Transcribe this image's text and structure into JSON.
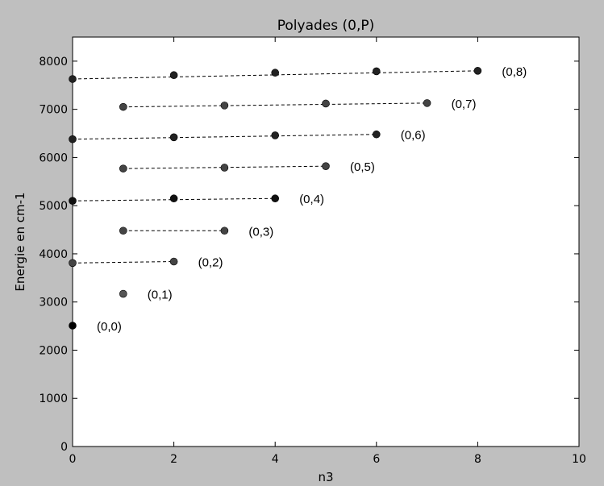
{
  "chart_data": {
    "type": "scatter",
    "title": "Polyades (0,P)",
    "xlabel": "n3",
    "ylabel": "Energie en cm-1",
    "xlim": [
      0,
      10
    ],
    "ylim": [
      0,
      8500
    ],
    "xticks": [
      0,
      2,
      4,
      6,
      8,
      10
    ],
    "yticks": [
      0,
      1000,
      2000,
      3000,
      4000,
      5000,
      6000,
      7000,
      8000
    ],
    "grid": false,
    "series": [
      {
        "label": "(0,0)",
        "color": "#000000",
        "points": [
          [
            0,
            2510
          ]
        ]
      },
      {
        "label": "(0,1)",
        "color": "#555555",
        "points": [
          [
            1,
            3170
          ]
        ]
      },
      {
        "label": "(0,2)",
        "color": "#444444",
        "points": [
          [
            0,
            3810
          ],
          [
            2,
            3840
          ]
        ]
      },
      {
        "label": "(0,3)",
        "color": "#444444",
        "points": [
          [
            1,
            4480
          ],
          [
            3,
            4480
          ]
        ]
      },
      {
        "label": "(0,4)",
        "color": "#111111",
        "points": [
          [
            0,
            5100
          ],
          [
            2,
            5150
          ],
          [
            4,
            5150
          ]
        ]
      },
      {
        "label": "(0,5)",
        "color": "#444444",
        "points": [
          [
            1,
            5770
          ],
          [
            3,
            5790
          ],
          [
            5,
            5820
          ]
        ]
      },
      {
        "label": "(0,6)",
        "color": "#222222",
        "points": [
          [
            0,
            6380
          ],
          [
            2,
            6420
          ],
          [
            4,
            6460
          ],
          [
            6,
            6480
          ]
        ]
      },
      {
        "label": "(0,7)",
        "color": "#444444",
        "points": [
          [
            1,
            7050
          ],
          [
            3,
            7080
          ],
          [
            5,
            7120
          ],
          [
            7,
            7130
          ]
        ]
      },
      {
        "label": "(0,8)",
        "color": "#222222",
        "points": [
          [
            0,
            7630
          ],
          [
            2,
            7710
          ],
          [
            4,
            7760
          ],
          [
            6,
            7790
          ],
          [
            8,
            7800
          ]
        ]
      }
    ]
  }
}
